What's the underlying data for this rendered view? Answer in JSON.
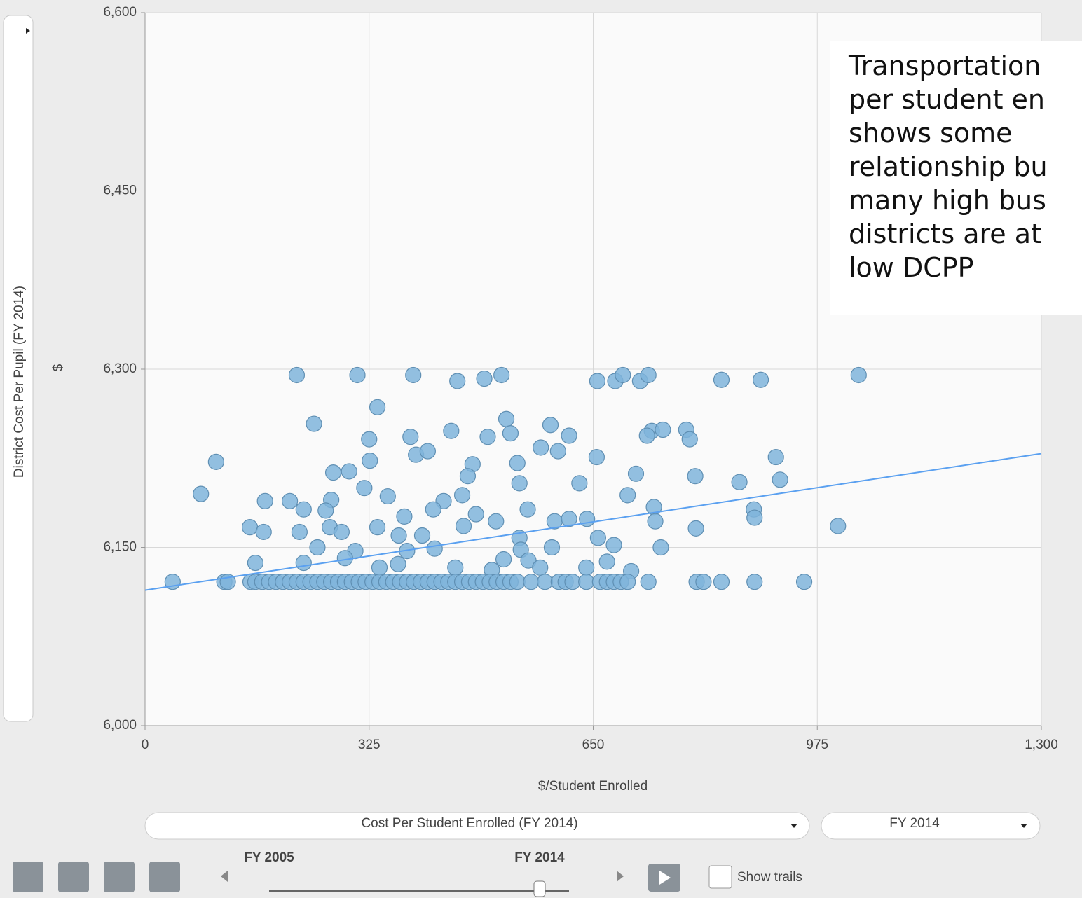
{
  "chart_data": {
    "type": "scatter",
    "ylabel": "District Cost Per Pupil (FY 2014)",
    "yunit": "$",
    "xlabel": "$/Student Enrolled",
    "xlim": [
      0,
      1300
    ],
    "ylim": [
      6000,
      6600
    ],
    "xticks": [
      0,
      325,
      650,
      975,
      {
        "value": 1300,
        "label": "1,300"
      }
    ],
    "yticks": [
      {
        "value": 6000,
        "label": "6,000"
      },
      {
        "value": 6150,
        "label": "6,150"
      },
      {
        "value": 6300,
        "label": "6,300"
      },
      {
        "value": 6450,
        "label": "6,450"
      },
      {
        "value": 6600,
        "label": "6,600"
      }
    ],
    "grid": true,
    "color": "#7fb4da",
    "x": [
      220,
      308,
      389,
      453,
      492,
      517,
      656,
      682,
      693,
      718,
      730,
      836,
      893,
      1035,
      337,
      245,
      524,
      588,
      530,
      444,
      385,
      497,
      615,
      325,
      393,
      410,
      574,
      599,
      735,
      728,
      751,
      785,
      790,
      655,
      915,
      326,
      540,
      475,
      273,
      296,
      468,
      712,
      798,
      921,
      862,
      318,
      543,
      630,
      81,
      103,
      174,
      210,
      352,
      460,
      700,
      270,
      433,
      418,
      555,
      738,
      883,
      884,
      230,
      262,
      376,
      480,
      509,
      594,
      615,
      641,
      740,
      152,
      172,
      224,
      268,
      285,
      337,
      368,
      402,
      462,
      543,
      657,
      799,
      1005,
      748,
      680,
      590,
      250,
      305,
      380,
      420,
      545,
      556,
      520,
      160,
      230,
      290,
      340,
      367,
      450,
      503,
      573,
      640,
      670,
      705,
      40,
      115,
      120,
      153,
      160,
      170,
      180,
      190,
      200,
      210,
      220,
      230,
      240,
      250,
      260,
      270,
      280,
      290,
      300,
      310,
      320,
      330,
      340,
      350,
      360,
      370,
      380,
      390,
      400,
      410,
      420,
      430,
      440,
      450,
      460,
      470,
      480,
      490,
      500,
      510,
      520,
      530,
      540,
      560,
      580,
      600,
      610,
      620,
      640,
      660,
      670,
      680,
      690,
      700,
      730,
      800,
      810,
      836,
      884,
      956
    ],
    "y": [
      6295,
      6295,
      6295,
      6290,
      6292,
      6295,
      6290,
      6290,
      6295,
      6290,
      6295,
      6291,
      6291,
      6295,
      6268,
      6254,
      6258,
      6253,
      6246,
      6248,
      6243,
      6243,
      6244,
      6241,
      6228,
      6231,
      6234,
      6231,
      6248,
      6244,
      6249,
      6249,
      6241,
      6226,
      6226,
      6223,
      6221,
      6220,
      6213,
      6214,
      6210,
      6212,
      6210,
      6207,
      6205,
      6200,
      6204,
      6204,
      6195,
      6222,
      6189,
      6189,
      6193,
      6194,
      6194,
      6190,
      6189,
      6182,
      6182,
      6184,
      6182,
      6175,
      6182,
      6181,
      6176,
      6178,
      6172,
      6172,
      6174,
      6174,
      6172,
      6167,
      6163,
      6163,
      6167,
      6163,
      6167,
      6160,
      6160,
      6168,
      6158,
      6158,
      6166,
      6168,
      6150,
      6152,
      6150,
      6150,
      6147,
      6147,
      6149,
      6148,
      6139,
      6140,
      6137,
      6137,
      6141,
      6133,
      6136,
      6133,
      6131,
      6133,
      6133,
      6138,
      6130,
      6121,
      6121,
      6121,
      6121,
      6121,
      6121,
      6121,
      6121,
      6121,
      6121,
      6121,
      6121,
      6121,
      6121,
      6121,
      6121,
      6121,
      6121,
      6121,
      6121,
      6121,
      6121,
      6121,
      6121,
      6121,
      6121,
      6121,
      6121,
      6121,
      6121,
      6121,
      6121,
      6121,
      6121,
      6121,
      6121,
      6121,
      6121,
      6121,
      6121,
      6121,
      6121,
      6121,
      6121,
      6121,
      6121,
      6121,
      6121,
      6121,
      6121,
      6121,
      6121,
      6121,
      6121,
      6121,
      6121,
      6121,
      6121,
      6121,
      6121
    ],
    "trendline": {
      "color": "#5aa0f0",
      "x": [
        0,
        1300
      ],
      "y": [
        6114,
        6229
      ]
    }
  },
  "controls": {
    "x_selector": "Cost Per Student Enrolled  (FY 2014)",
    "size_selector": "FY 2014",
    "slider_start": "FY 2005",
    "slider_current": "FY 2014",
    "trails": "Show trails"
  },
  "annotation": {
    "lines": [
      "Transportation",
      "per student en",
      "shows some",
      "relationship bu",
      "many high bus",
      "districts are at",
      "low DCPP"
    ]
  }
}
